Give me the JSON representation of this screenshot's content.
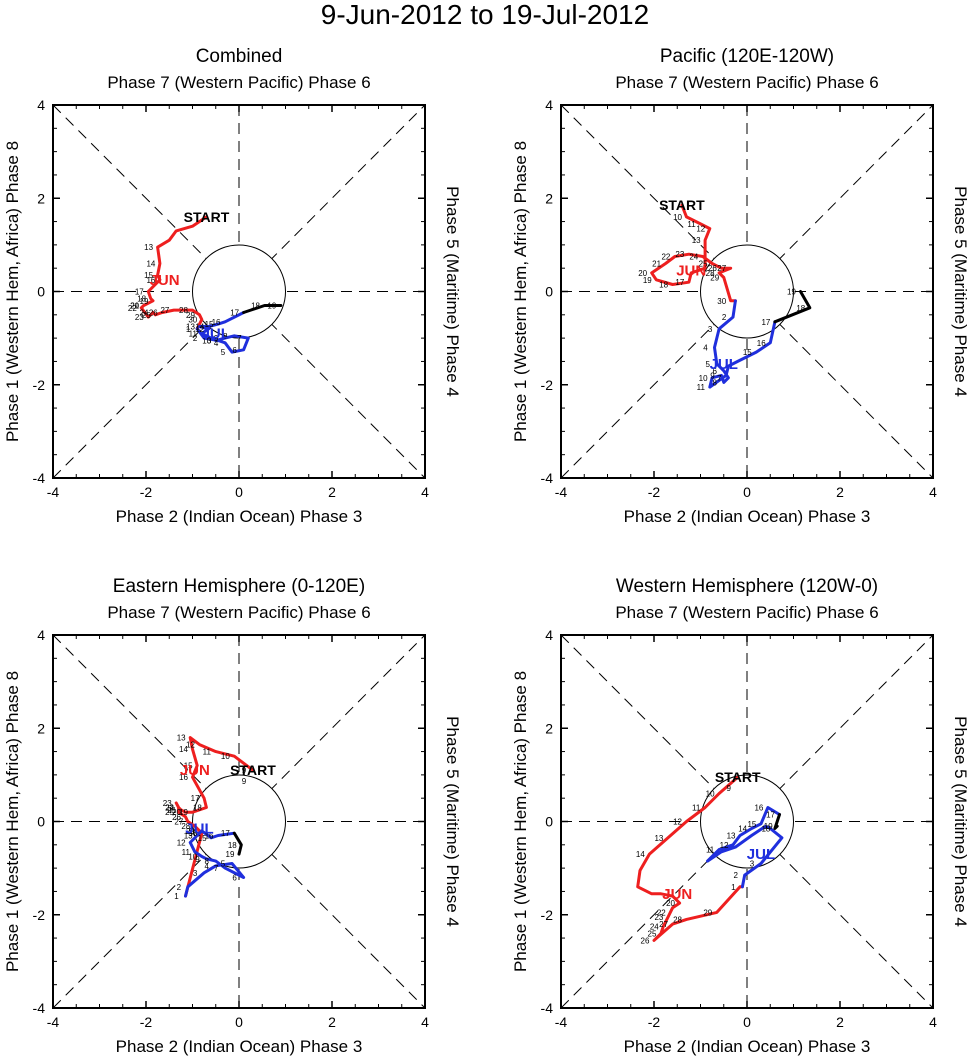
{
  "figure": {
    "title": "9-Jun-2012 to 19-Jul-2012"
  },
  "style": {
    "june_color": "#ee1f1f",
    "july_color": "#1f2fdd",
    "end_color": "#000000"
  },
  "labels": {
    "top": "Phase 7 (Western Pacific) Phase 6",
    "bottom": "Phase 2 (Indian Ocean) Phase 3",
    "left": "Phase 1 (Western Hem, Africa) Phase 8",
    "right": "Phase 5 (Maritime) Phase 4",
    "start": "START",
    "june": "JUN",
    "july": "JUL"
  },
  "chart_data": [
    {
      "type": "line",
      "title": "Combined",
      "xlim": [
        -4,
        4
      ],
      "ylim": [
        -4,
        4
      ],
      "xticks": [
        -4,
        -2,
        0,
        2,
        4
      ],
      "yticks": [
        -4,
        -2,
        0,
        2,
        4
      ],
      "june": {
        "days": [
          9,
          10,
          11,
          12,
          13,
          14,
          15,
          16,
          17,
          18,
          19,
          20,
          21,
          22,
          23,
          24,
          25,
          26,
          27,
          28,
          29,
          30
        ],
        "x": [
          -0.7,
          -1.0,
          -1.35,
          -1.5,
          -1.75,
          -1.7,
          -1.75,
          -1.7,
          -1.95,
          -1.9,
          -1.85,
          -2.05,
          -2.05,
          -2.1,
          -1.95,
          -1.85,
          -1.8,
          -1.65,
          -1.4,
          -1.0,
          -0.85,
          -0.8
        ],
        "y": [
          1.6,
          1.4,
          1.3,
          1.1,
          0.95,
          0.6,
          0.35,
          0.25,
          0.0,
          -0.15,
          -0.2,
          -0.3,
          -0.3,
          -0.35,
          -0.55,
          -0.45,
          -0.5,
          -0.45,
          -0.4,
          -0.4,
          -0.5,
          -0.6
        ]
      },
      "july": {
        "days": [
          1,
          2,
          3,
          4,
          5,
          6,
          7,
          8,
          9,
          10,
          11,
          12,
          13,
          14,
          15,
          16,
          17,
          18,
          19
        ],
        "x": [
          -0.9,
          -0.75,
          -0.45,
          -0.3,
          -0.15,
          0.1,
          0.2,
          -0.1,
          -0.3,
          -0.5,
          -0.8,
          -0.65,
          -0.85,
          -0.65,
          -0.45,
          -0.3,
          0.1,
          0.55,
          0.9
        ],
        "y": [
          -0.8,
          -1.0,
          -1.05,
          -1.1,
          -1.3,
          -1.25,
          -1.0,
          -0.95,
          -1.0,
          -1.05,
          -0.9,
          -0.8,
          -0.75,
          -0.75,
          -0.7,
          -0.65,
          -0.45,
          -0.3,
          -0.3
        ]
      },
      "start_xy": [
        -0.7,
        1.6
      ],
      "june_mark": {
        "x": -1.6,
        "y": 0.25,
        "label_days": [
          13,
          14,
          15,
          16,
          17,
          18,
          19,
          20,
          21,
          22,
          23,
          24,
          25,
          26,
          27,
          28,
          29,
          30
        ]
      },
      "july_mark": {
        "x": -0.5,
        "y": -0.9,
        "label_days": [
          1,
          2,
          3,
          4,
          5,
          6,
          7,
          8,
          9,
          10,
          11,
          12,
          13,
          14,
          15,
          16,
          17,
          18,
          19
        ]
      },
      "show_start_day": false
    },
    {
      "type": "line",
      "title": "Pacific (120E-120W)",
      "xlim": [
        -4,
        4
      ],
      "ylim": [
        -4,
        4
      ],
      "xticks": [
        -4,
        -2,
        0,
        2,
        4
      ],
      "yticks": [
        -4,
        -2,
        0,
        2,
        4
      ],
      "june": {
        "days": [
          9,
          10,
          11,
          12,
          13,
          14,
          15,
          16,
          17,
          18,
          19,
          20,
          21,
          22,
          23,
          24,
          25,
          26,
          27,
          28,
          29,
          30
        ],
        "x": [
          -1.4,
          -1.3,
          -1.0,
          -0.8,
          -0.9,
          -0.9,
          -0.9,
          -1.2,
          -1.25,
          -1.6,
          -1.95,
          -2.05,
          -1.75,
          -1.55,
          -1.25,
          -0.95,
          -0.75,
          -0.55,
          -0.35,
          -0.6,
          -0.5,
          -0.35
        ],
        "y": [
          1.85,
          1.6,
          1.45,
          1.35,
          1.1,
          0.75,
          0.5,
          0.4,
          0.2,
          0.15,
          0.25,
          0.4,
          0.6,
          0.75,
          0.8,
          0.75,
          0.6,
          0.5,
          0.5,
          0.4,
          0.3,
          -0.2
        ]
      },
      "july": {
        "days": [
          1,
          2,
          3,
          4,
          5,
          6,
          7,
          8,
          9,
          10,
          11,
          12,
          13,
          14,
          15,
          16,
          17,
          18,
          19
        ],
        "x": [
          -0.25,
          -0.3,
          -0.6,
          -0.7,
          -0.65,
          -0.5,
          -0.4,
          -0.5,
          -0.55,
          -0.75,
          -0.8,
          -0.45,
          -0.4,
          -0.2,
          0.2,
          0.5,
          0.6,
          1.35,
          1.15
        ],
        "y": [
          -0.2,
          -0.55,
          -0.8,
          -1.2,
          -1.55,
          -1.7,
          -1.85,
          -1.95,
          -1.8,
          -1.85,
          -2.05,
          -1.8,
          -1.6,
          -1.5,
          -1.3,
          -1.1,
          -0.65,
          -0.35,
          0.0
        ]
      },
      "start_xy": [
        -1.4,
        1.85
      ],
      "june_mark": {
        "x": -1.2,
        "y": 0.45,
        "label_days": [
          10,
          11,
          12,
          13,
          17,
          18,
          19,
          20,
          21,
          22,
          23,
          24,
          25,
          26,
          27,
          28,
          29,
          30
        ]
      },
      "july_mark": {
        "x": -0.5,
        "y": -1.55,
        "label_days": [
          2,
          3,
          4,
          5,
          6,
          7,
          8,
          9,
          10,
          11,
          15,
          16,
          17,
          18,
          19
        ]
      },
      "show_start_day": false
    },
    {
      "type": "line",
      "title": "Eastern Hemisphere (0-120E)",
      "xlim": [
        -4,
        4
      ],
      "ylim": [
        -4,
        4
      ],
      "xticks": [
        -4,
        -2,
        0,
        2,
        4
      ],
      "yticks": [
        -4,
        -2,
        0,
        2,
        4
      ],
      "june": {
        "days": [
          9,
          10,
          11,
          12,
          13,
          14,
          15,
          16,
          17,
          18,
          19,
          20,
          21,
          22,
          23,
          24,
          25,
          26,
          27,
          28,
          29,
          30
        ],
        "x": [
          0.3,
          -0.1,
          -0.5,
          -0.85,
          -1.05,
          -1.0,
          -0.9,
          -1.0,
          -0.75,
          -0.7,
          -1.0,
          -1.15,
          -1.25,
          -1.3,
          -1.35,
          -1.3,
          -1.3,
          -1.15,
          -1.1,
          -0.95,
          -0.85,
          -0.8
        ],
        "y": [
          1.1,
          1.4,
          1.5,
          1.65,
          1.8,
          1.55,
          1.2,
          0.95,
          0.5,
          0.3,
          0.2,
          0.2,
          0.25,
          0.3,
          0.4,
          0.3,
          0.2,
          0.1,
          0.0,
          -0.1,
          -0.2,
          -0.25
        ]
      },
      "july": {
        "days": [
          1,
          2,
          3,
          4,
          5,
          6,
          7,
          8,
          9,
          10,
          11,
          12,
          13,
          14,
          15,
          16,
          17,
          18,
          19
        ],
        "x": [
          -1.15,
          -1.1,
          -0.75,
          -0.5,
          -0.15,
          0.1,
          -0.3,
          -0.5,
          -0.7,
          -0.8,
          -0.95,
          -1.05,
          -0.9,
          -0.8,
          -0.6,
          -0.45,
          -0.1,
          0.05,
          0.0
        ],
        "y": [
          -1.6,
          -1.4,
          -1.1,
          -0.95,
          -0.9,
          -1.2,
          -1.0,
          -0.85,
          -0.8,
          -0.75,
          -0.65,
          -0.45,
          -0.3,
          -0.2,
          -0.35,
          -0.3,
          -0.25,
          -0.5,
          -0.7
        ]
      },
      "start_xy": [
        0.3,
        1.1
      ],
      "june_mark": {
        "x": -0.95,
        "y": 1.1,
        "label_days": [
          9,
          10,
          11,
          12,
          13,
          14,
          15,
          16,
          17,
          18,
          19,
          20,
          21,
          22,
          23,
          24,
          25,
          26,
          27,
          28,
          29,
          30
        ]
      },
      "july_mark": {
        "x": -0.85,
        "y": -0.15,
        "label_days": [
          1,
          2,
          3,
          4,
          5,
          6,
          7,
          8,
          9,
          10,
          11,
          12,
          13,
          14,
          15,
          16,
          17,
          18,
          19
        ]
      },
      "show_start_day": true
    },
    {
      "type": "line",
      "title": "Western Hemisphere (120W-0)",
      "xlim": [
        -4,
        4
      ],
      "ylim": [
        -4,
        4
      ],
      "xticks": [
        -4,
        -2,
        0,
        2,
        4
      ],
      "yticks": [
        -4,
        -2,
        0,
        2,
        4
      ],
      "june": {
        "days": [
          9,
          10,
          11,
          12,
          13,
          14,
          15,
          16,
          17,
          18,
          19,
          20,
          21,
          22,
          23,
          24,
          25,
          26,
          27,
          28,
          29,
          30
        ],
        "x": [
          -0.2,
          -0.6,
          -0.9,
          -1.3,
          -1.7,
          -2.1,
          -2.3,
          -2.35,
          -2.05,
          -1.85,
          -1.6,
          -1.45,
          -1.6,
          -1.65,
          -1.7,
          -1.8,
          -1.85,
          -2.0,
          -1.6,
          -1.3,
          -0.65,
          -0.15
        ],
        "y": [
          0.95,
          0.6,
          0.3,
          0.0,
          -0.35,
          -0.7,
          -1.05,
          -1.4,
          -1.55,
          -1.55,
          -1.6,
          -1.75,
          -1.85,
          -1.95,
          -2.05,
          -2.25,
          -2.4,
          -2.55,
          -2.2,
          -2.1,
          -1.95,
          -1.4
        ]
      },
      "july": {
        "days": [
          1,
          2,
          3,
          4,
          5,
          6,
          7,
          8,
          9,
          10,
          11,
          12,
          13,
          14,
          15,
          16,
          17,
          18,
          19
        ],
        "x": [
          -0.1,
          -0.05,
          0.3,
          0.75,
          0.5,
          0.4,
          0.1,
          -0.25,
          -0.55,
          -0.85,
          -0.6,
          -0.3,
          -0.15,
          0.1,
          0.3,
          0.45,
          0.7,
          0.6,
          0.65
        ],
        "y": [
          -1.4,
          -1.15,
          -0.9,
          -0.35,
          -0.15,
          -0.1,
          -0.3,
          -0.55,
          -0.65,
          -0.85,
          -0.6,
          -0.5,
          -0.3,
          -0.15,
          -0.05,
          0.3,
          0.15,
          -0.15,
          -0.1
        ]
      },
      "start_xy": [
        -0.2,
        0.95
      ],
      "june_mark": {
        "x": -1.5,
        "y": -1.55,
        "label_days": [
          10,
          11,
          12,
          13,
          14,
          20,
          22,
          23,
          24,
          25,
          26,
          27,
          28,
          29
        ]
      },
      "july_mark": {
        "x": 0.3,
        "y": -0.7,
        "label_days": [
          1,
          2,
          3,
          11,
          12,
          13,
          14,
          15,
          16,
          17,
          18,
          19
        ]
      },
      "show_start_day": true
    }
  ]
}
